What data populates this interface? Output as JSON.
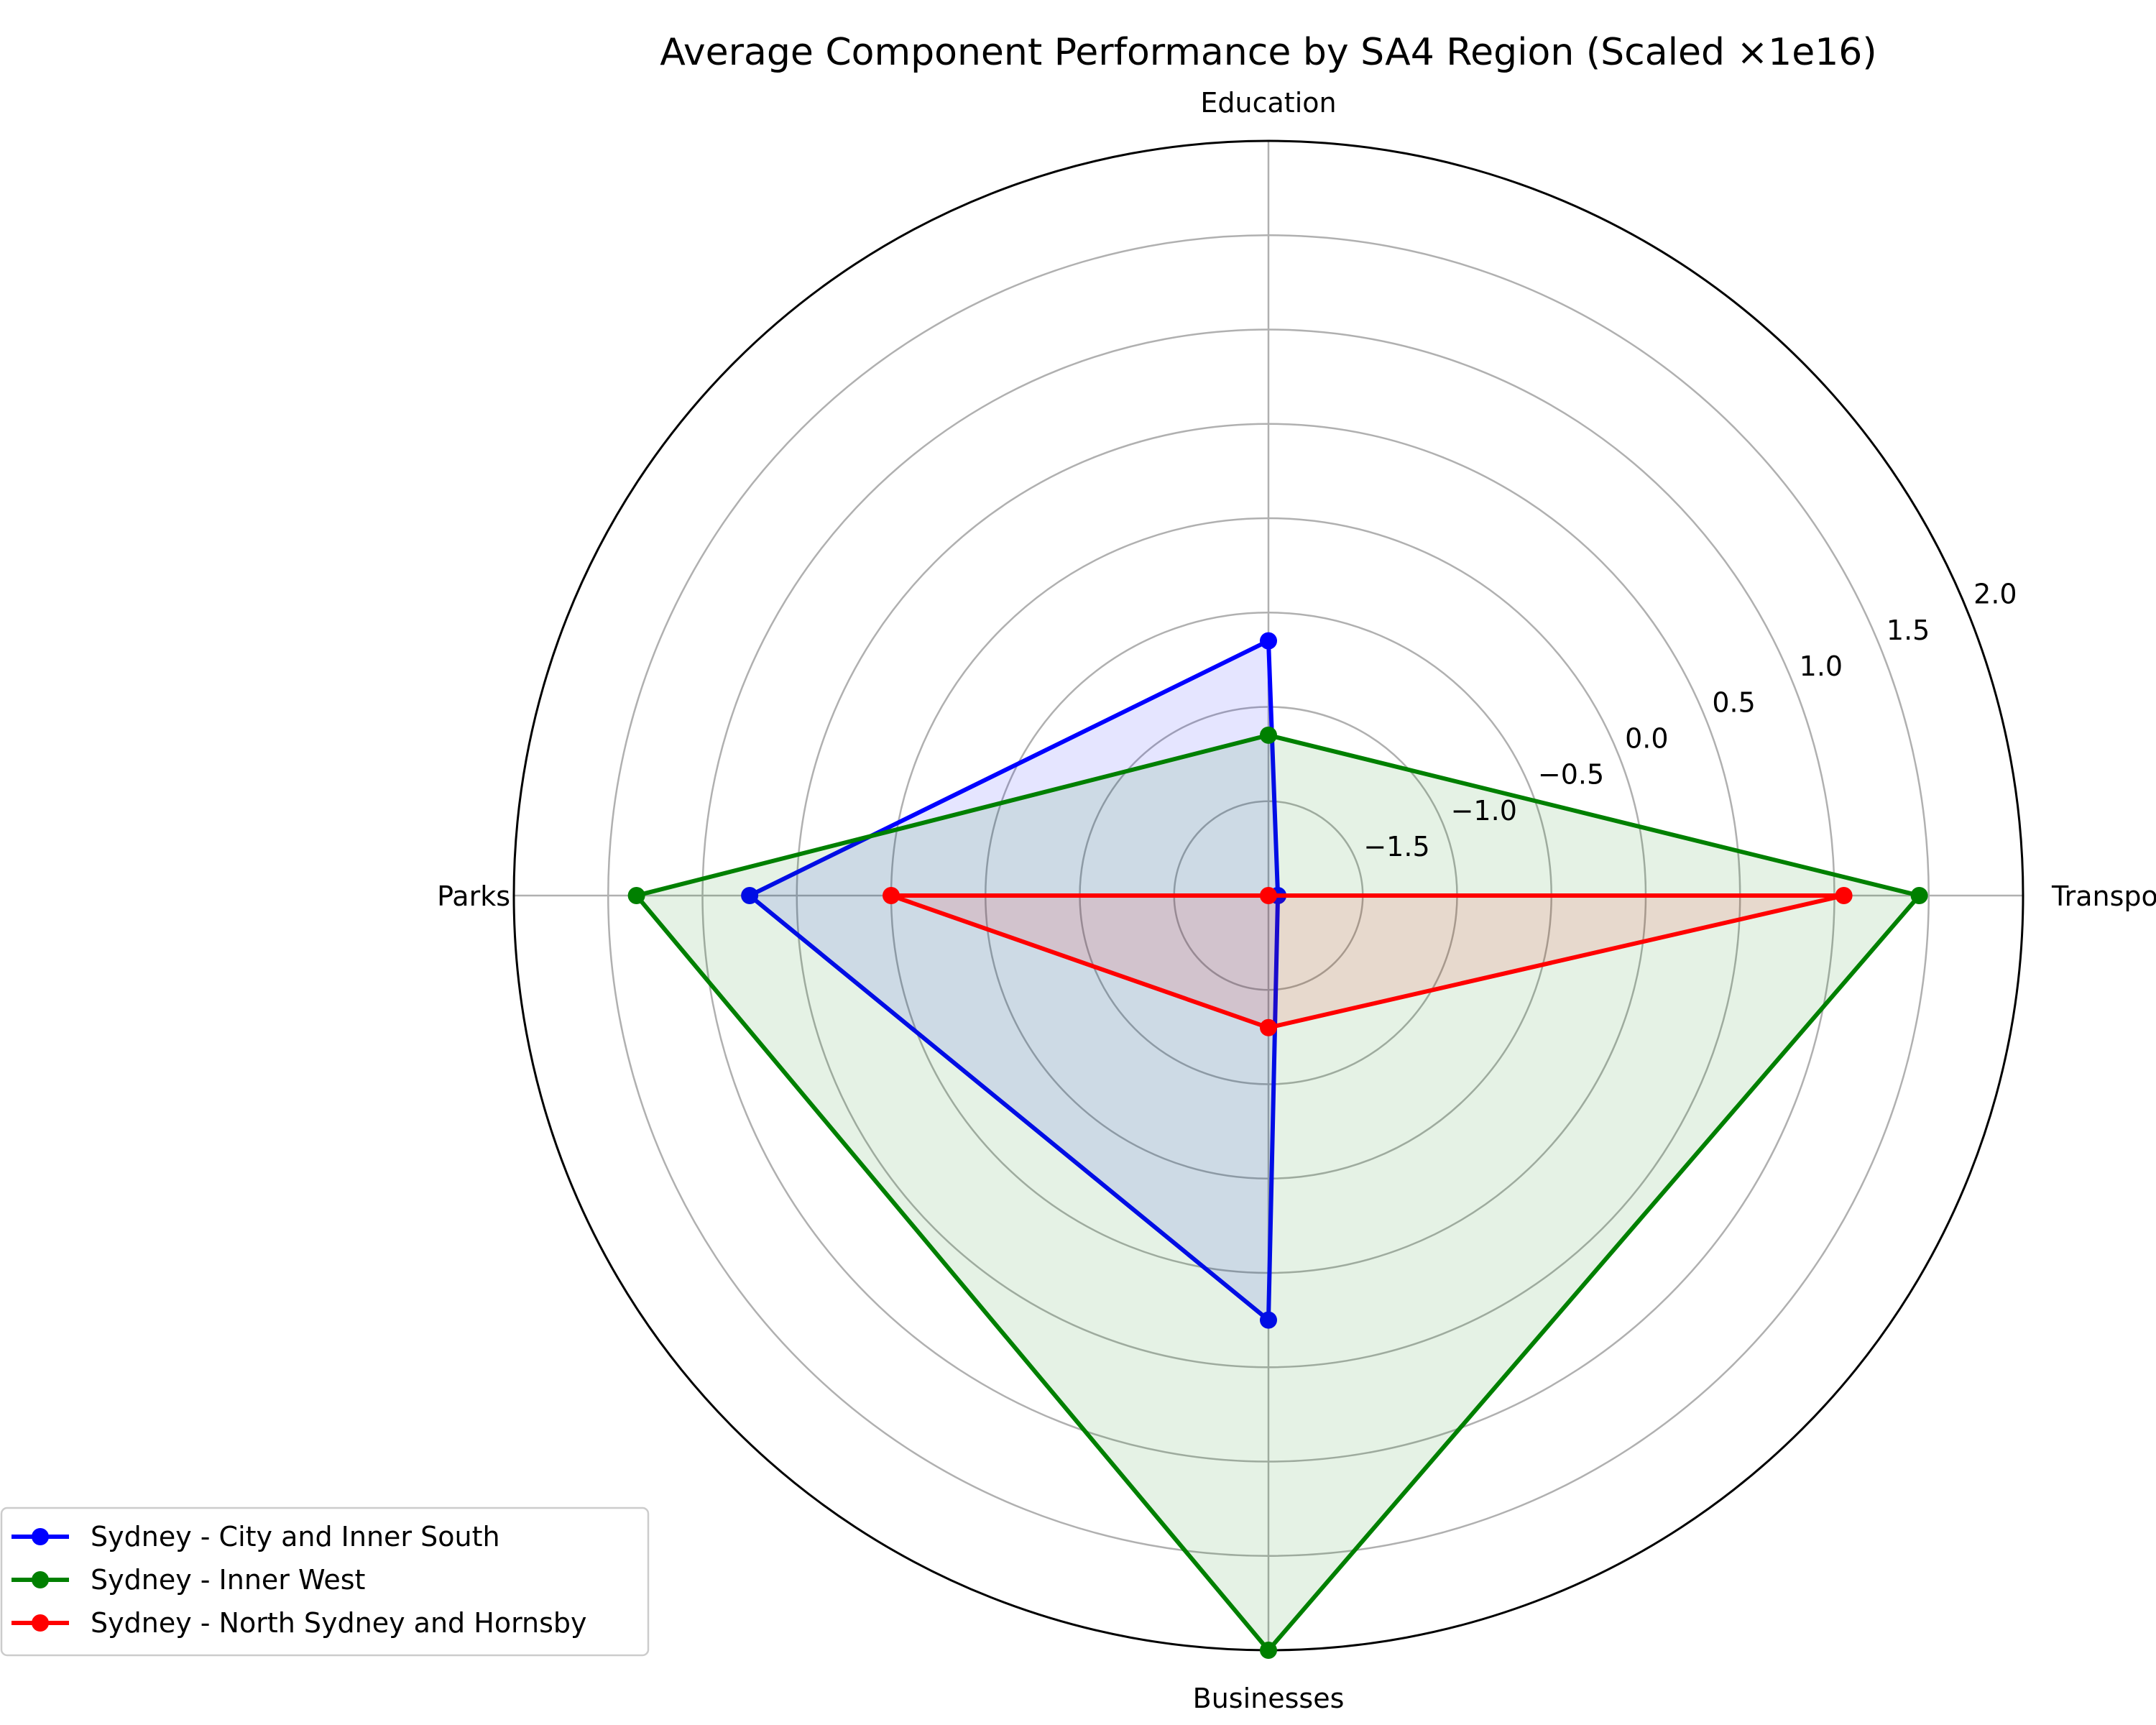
{
  "chart_data": {
    "type": "radar",
    "title": "Average Component Performance by SA4 Region (Scaled ×1e16)",
    "axes": [
      "Transport",
      "Education",
      "Parks",
      "Businesses"
    ],
    "r_range": [
      -2.0,
      2.0
    ],
    "r_ticks": [
      -1.5,
      -1.0,
      -0.5,
      0.0,
      0.5,
      1.0,
      1.5,
      2.0
    ],
    "r_tick_labels": [
      "−1.5",
      "−1.0",
      "−0.5",
      "0.0",
      "0.5",
      "1.0",
      "1.5",
      "2.0"
    ],
    "grid": true,
    "legend_position": "lower-left",
    "series": [
      {
        "name": "Sydney - City and Inner South",
        "color": "#0000ff",
        "values": [
          -1.95,
          -0.65,
          0.75,
          0.25
        ]
      },
      {
        "name": "Sydney - Inner West",
        "color": "#008000",
        "values": [
          1.45,
          -1.15,
          1.35,
          2.0
        ]
      },
      {
        "name": "Sydney - North Sydney and Hornsby",
        "color": "#ff0000",
        "values": [
          1.05,
          -2.0,
          0.0,
          -1.3
        ]
      }
    ]
  }
}
